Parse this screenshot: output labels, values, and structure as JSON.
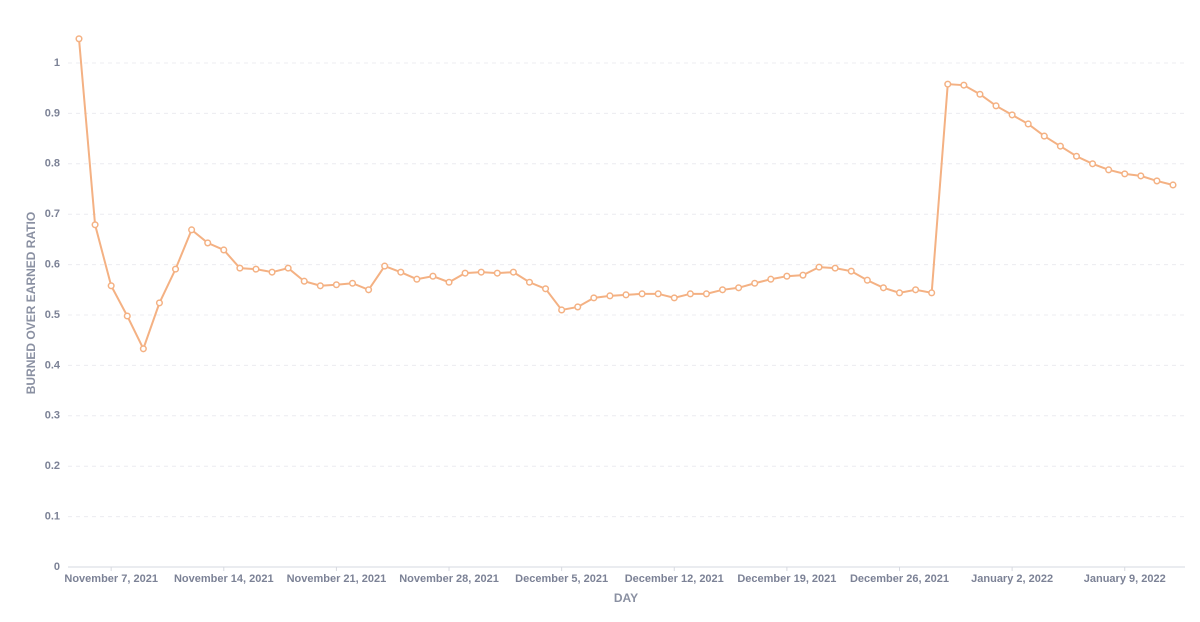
{
  "chart_data": {
    "type": "line",
    "xlabel": "DAY",
    "ylabel": "BURNED OVER EARNED RATIO",
    "x": [
      "2021-11-05",
      "2021-11-06",
      "2021-11-07",
      "2021-11-08",
      "2021-11-09",
      "2021-11-10",
      "2021-11-11",
      "2021-11-12",
      "2021-11-13",
      "2021-11-14",
      "2021-11-15",
      "2021-11-16",
      "2021-11-17",
      "2021-11-18",
      "2021-11-19",
      "2021-11-20",
      "2021-11-21",
      "2021-11-22",
      "2021-11-23",
      "2021-11-24",
      "2021-11-25",
      "2021-11-26",
      "2021-11-27",
      "2021-11-28",
      "2021-11-29",
      "2021-11-30",
      "2021-12-01",
      "2021-12-02",
      "2021-12-03",
      "2021-12-04",
      "2021-12-05",
      "2021-12-06",
      "2021-12-07",
      "2021-12-08",
      "2021-12-09",
      "2021-12-10",
      "2021-12-11",
      "2021-12-12",
      "2021-12-13",
      "2021-12-14",
      "2021-12-15",
      "2021-12-16",
      "2021-12-17",
      "2021-12-18",
      "2021-12-19",
      "2021-12-20",
      "2021-12-21",
      "2021-12-22",
      "2021-12-23",
      "2021-12-24",
      "2021-12-25",
      "2021-12-26",
      "2021-12-27",
      "2021-12-28",
      "2021-12-29",
      "2021-12-30",
      "2021-12-31",
      "2022-01-01",
      "2022-01-02",
      "2022-01-03",
      "2022-01-04",
      "2022-01-05",
      "2022-01-06",
      "2022-01-07",
      "2022-01-08",
      "2022-01-09",
      "2022-01-10",
      "2022-01-11",
      "2022-01-12"
    ],
    "series": [
      {
        "name": "Burned over earned ratio",
        "color": "#f4b183",
        "values": [
          1.048,
          0.679,
          0.558,
          0.498,
          0.433,
          0.524,
          0.591,
          0.669,
          0.643,
          0.629,
          0.593,
          0.591,
          0.585,
          0.593,
          0.567,
          0.558,
          0.56,
          0.563,
          0.55,
          0.597,
          0.585,
          0.571,
          0.577,
          0.565,
          0.583,
          0.585,
          0.583,
          0.585,
          0.565,
          0.552,
          0.51,
          0.516,
          0.534,
          0.538,
          0.54,
          0.542,
          0.542,
          0.534,
          0.542,
          0.542,
          0.55,
          0.554,
          0.563,
          0.571,
          0.577,
          0.579,
          0.595,
          0.593,
          0.587,
          0.569,
          0.554,
          0.544,
          0.55,
          0.544,
          0.958,
          0.956,
          0.938,
          0.915,
          0.897,
          0.879,
          0.855,
          0.835,
          0.815,
          0.8,
          0.788,
          0.78,
          0.776,
          0.766,
          0.758
        ]
      }
    ],
    "xlim": [
      "2021-11-05",
      "2022-01-12"
    ],
    "xticks": [
      {
        "value": "2021-11-07",
        "label": "November 7, 2021"
      },
      {
        "value": "2021-11-14",
        "label": "November 14, 2021"
      },
      {
        "value": "2021-11-21",
        "label": "November 21, 2021"
      },
      {
        "value": "2021-11-28",
        "label": "November 28, 2021"
      },
      {
        "value": "2021-12-05",
        "label": "December 5, 2021"
      },
      {
        "value": "2021-12-12",
        "label": "December 12, 2021"
      },
      {
        "value": "2021-12-19",
        "label": "December 19, 2021"
      },
      {
        "value": "2021-12-26",
        "label": "December 26, 2021"
      },
      {
        "value": "2022-01-02",
        "label": "January 2, 2022"
      },
      {
        "value": "2022-01-09",
        "label": "January 9, 2022"
      }
    ],
    "ylim": [
      0,
      1.1
    ],
    "yticks": [
      0,
      0.1,
      0.2,
      0.3,
      0.4,
      0.5,
      0.6,
      0.7,
      0.8,
      0.9,
      1
    ],
    "grid": true
  }
}
